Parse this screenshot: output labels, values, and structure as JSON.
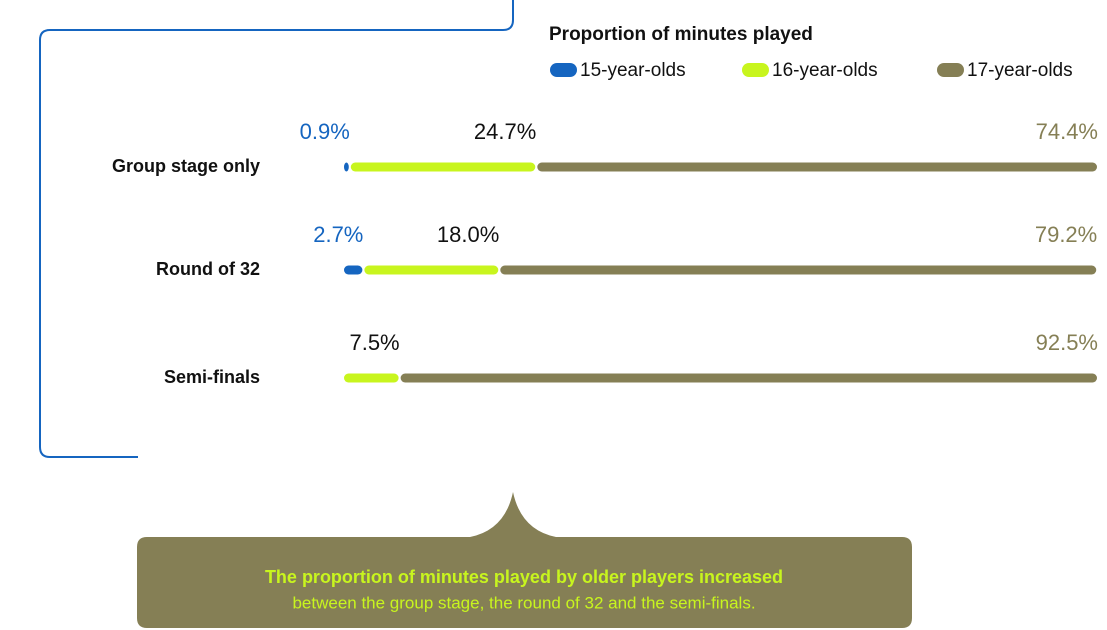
{
  "chart_data": {
    "type": "stacked_barh",
    "title": "Proportion of minutes played",
    "categories": [
      "Group stage only",
      "Round of 32",
      "Semi-finals"
    ],
    "series": [
      {
        "name": "15-year-olds",
        "color": "#1565c0",
        "values": [
          0.9,
          2.7,
          null
        ],
        "value_labels": [
          "0.9%",
          "2.7%",
          null
        ]
      },
      {
        "name": "16-year-olds",
        "color": "#c8f51e",
        "values": [
          24.7,
          18.0,
          7.5
        ],
        "value_labels": [
          "24.7%",
          "18.0%",
          "7.5%"
        ]
      },
      {
        "name": "17-year-olds",
        "color": "#857f55",
        "values": [
          74.4,
          79.2,
          92.5
        ],
        "value_labels": [
          "74.4%",
          "79.2%",
          "92.5%"
        ]
      }
    ],
    "xlim": [
      0,
      100
    ],
    "annotations": [
      "The proportion of minutes played by older players increased",
      "between the group stage, the round of 32 and the semi-finals."
    ]
  }
}
